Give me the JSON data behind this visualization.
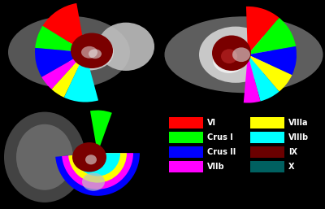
{
  "background_color": "#000000",
  "legend_items_left": [
    {
      "label": "VI",
      "color": "#ff0000"
    },
    {
      "label": "Crus I",
      "color": "#00ff00"
    },
    {
      "label": "Crus II",
      "color": "#0000ff"
    },
    {
      "label": "VIIb",
      "color": "#ff00ff"
    }
  ],
  "legend_items_right": [
    {
      "label": "VIIIa",
      "color": "#ffff00"
    },
    {
      "label": "VIIIb",
      "color": "#00ffff"
    },
    {
      "label": "IX",
      "color": "#6b0000"
    },
    {
      "label": "X",
      "color": "#006060"
    }
  ],
  "legend_text_color": "#ffffff",
  "legend_font_size": 7,
  "fig_width": 4.0,
  "fig_height": 2.57,
  "dpi": 100
}
